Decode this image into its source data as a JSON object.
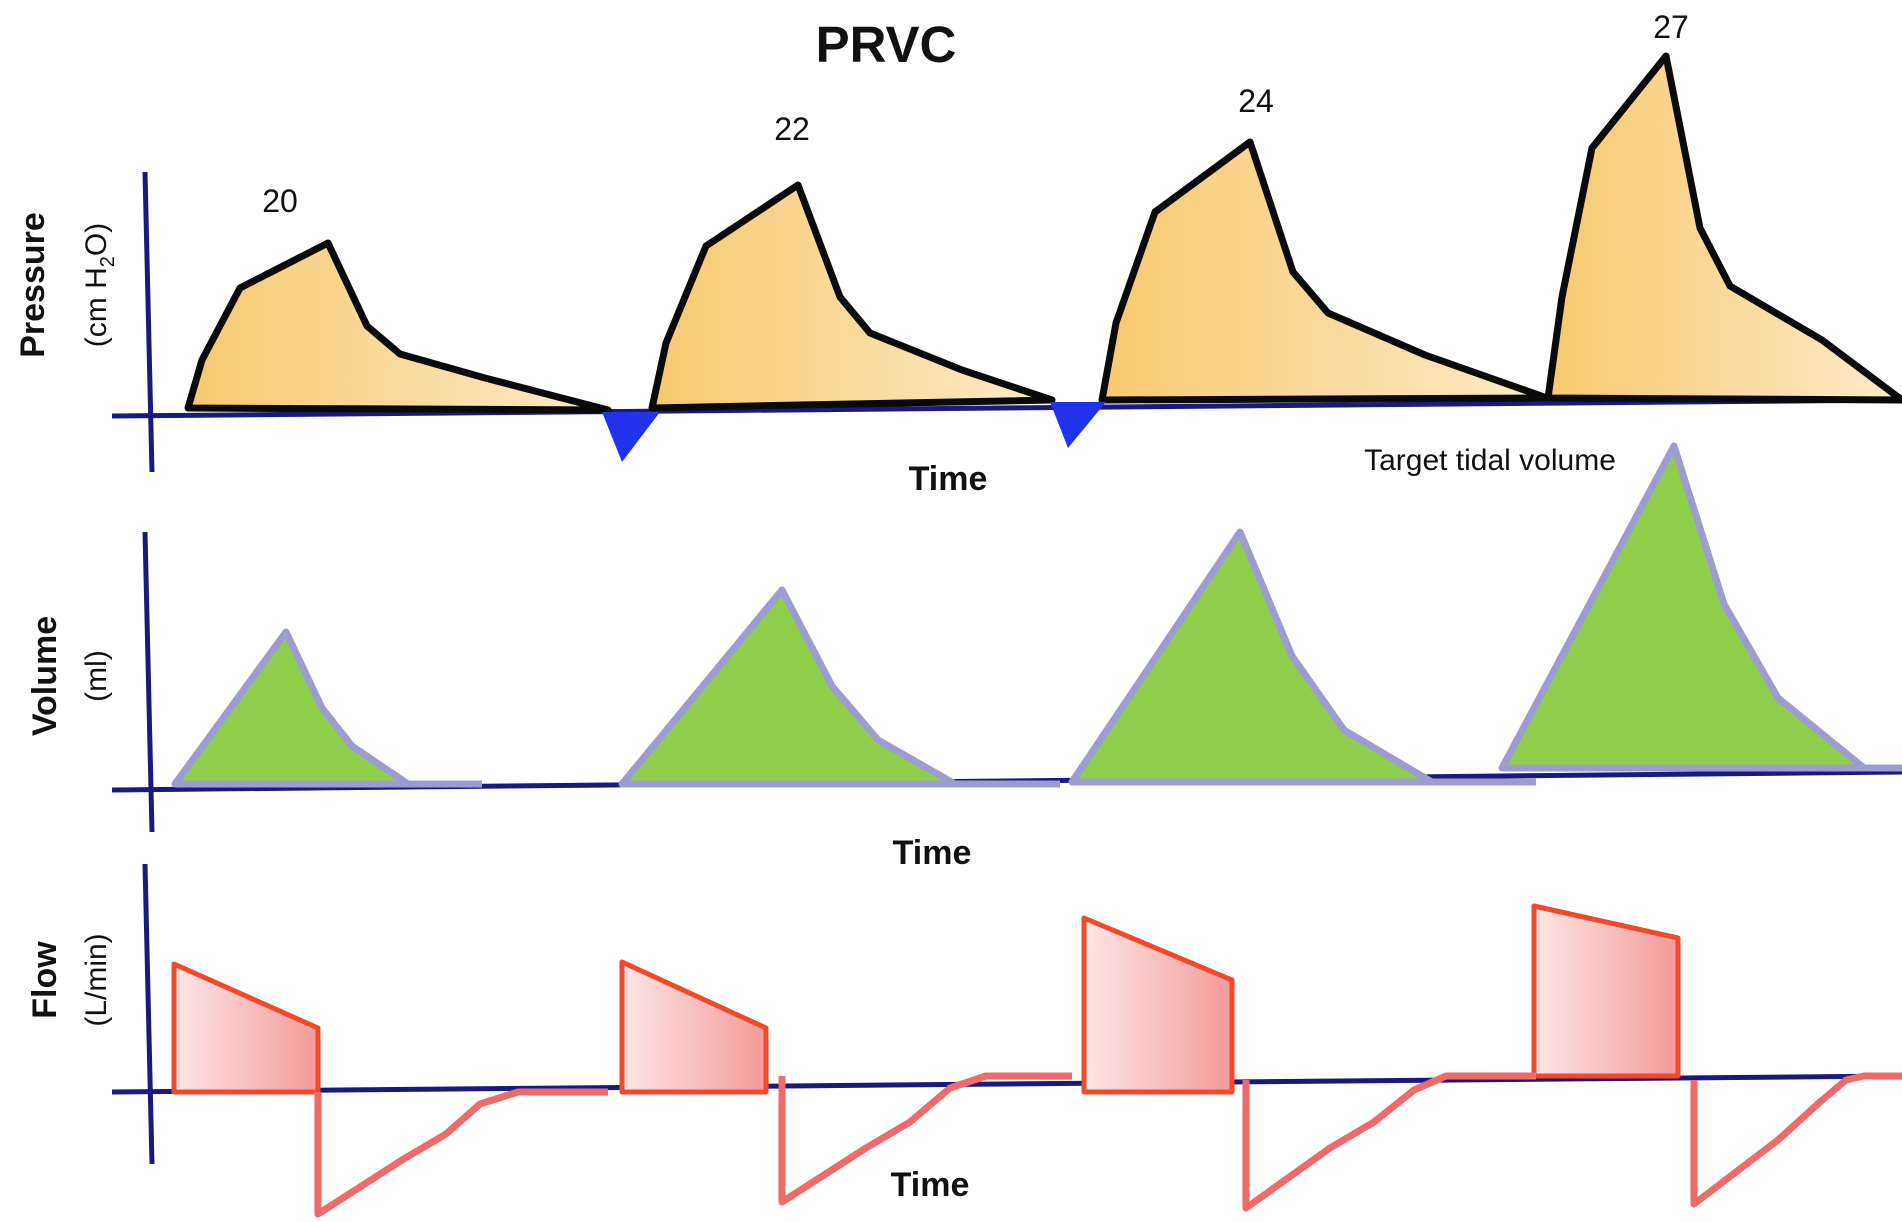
{
  "title": "PRVC",
  "colors": {
    "axis": "#1a1a7e",
    "pressure_fill_dark": "#f7c96e",
    "pressure_fill_light": "#fdebc9",
    "pressure_stroke": "#0a0a0a",
    "trigger_marker": "#2233ee",
    "volume_fill": "#8fce4b",
    "volume_stroke": "#9c9cd0",
    "flow_stroke": "#f04a2a",
    "flow_expiratory": "#f06a6a",
    "flow_fill_dark": "#f49a9a",
    "flow_fill_light": "#fde6e6"
  },
  "panels": {
    "pressure": {
      "label": "Pressure",
      "unit_prefix": "(cm H",
      "unit_sub": "2",
      "unit_suffix": "O)",
      "time_label": "Time"
    },
    "volume": {
      "label": "Volume",
      "unit": "(ml)",
      "time_label": "Time",
      "annotation": "Target tidal volume"
    },
    "flow": {
      "label": "Flow",
      "unit": "(L/min)",
      "time_label": "Time"
    }
  },
  "breaths": [
    {
      "peak_pressure": "20"
    },
    {
      "peak_pressure": "22"
    },
    {
      "peak_pressure": "24"
    },
    {
      "peak_pressure": "27"
    }
  ]
}
